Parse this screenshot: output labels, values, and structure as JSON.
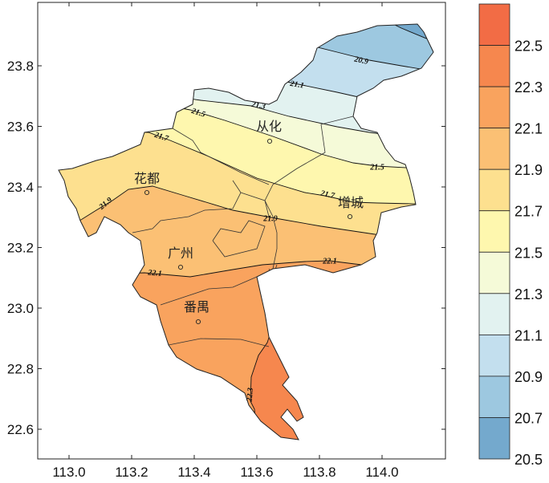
{
  "map": {
    "x_ticks": [
      "113.0",
      "113.2",
      "113.4",
      "113.6",
      "113.8",
      "114.0"
    ],
    "y_ticks": [
      "23.8",
      "23.6",
      "23.4",
      "23.2",
      "23.0",
      "22.8",
      "22.6"
    ],
    "places": [
      {
        "name": "从化"
      },
      {
        "name": "花都"
      },
      {
        "name": "增城"
      },
      {
        "name": "广州"
      },
      {
        "name": "番禺"
      }
    ],
    "contour_labels": [
      "20.9",
      "21.1",
      "21.3",
      "21.5",
      "21.7",
      "21.9",
      "22.1",
      "22.3",
      "21.5",
      "21.7",
      "21.9",
      "22.1"
    ],
    "contour_levels": [
      20.7,
      20.9,
      21.1,
      21.3,
      21.5,
      21.7,
      21.9,
      22.1,
      22.3
    ]
  },
  "colorbar": {
    "labels": [
      "22.5",
      "22.3",
      "22.1",
      "21.9",
      "21.7",
      "21.5",
      "21.3",
      "21.1",
      "20.9",
      "20.7",
      "20.5"
    ],
    "band_colors_top_to_bottom": [
      "#f26c45",
      "#f6874e",
      "#f9a35e",
      "#fbc074",
      "#fde08f",
      "#fef7ae",
      "#f5fad8",
      "#e2f2f0",
      "#c3dfee",
      "#9dc8e0",
      "#74a9cd"
    ]
  }
}
